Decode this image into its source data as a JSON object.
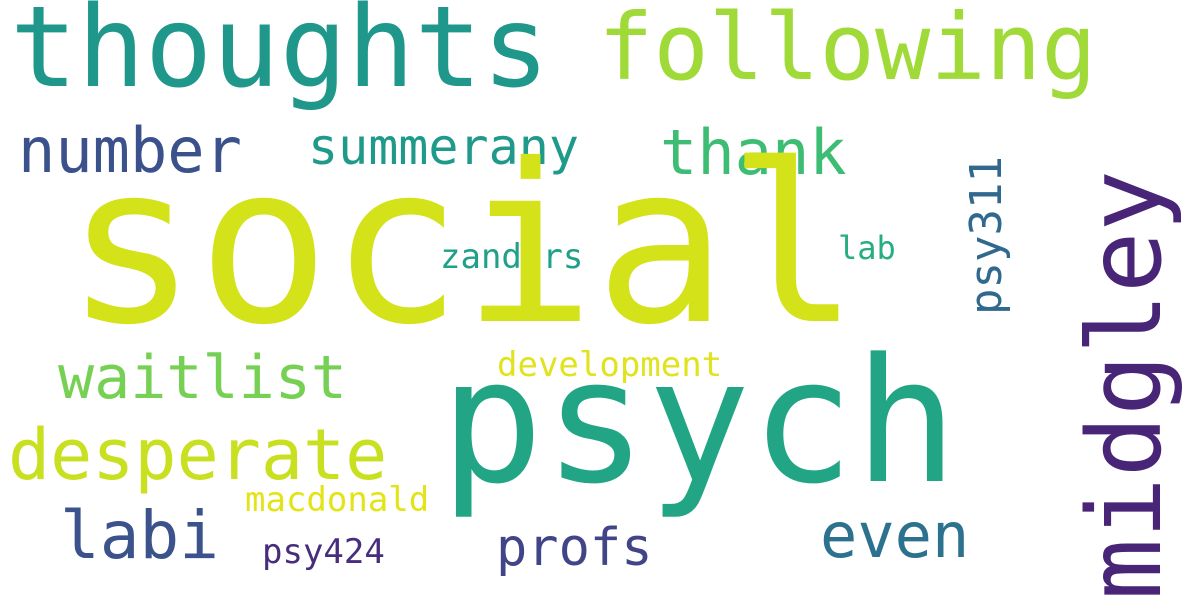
{
  "words": [
    {
      "key": "social",
      "text": "social",
      "color": "#d4e21a",
      "weight": 1.0
    },
    {
      "key": "psych",
      "text": "psych",
      "color": "#21a585",
      "weight": 0.9
    },
    {
      "key": "thoughts",
      "text": "thoughts",
      "color": "#1f988b",
      "weight": 0.55
    },
    {
      "key": "following",
      "text": "following",
      "color": "#a0da39",
      "weight": 0.5
    },
    {
      "key": "midgley",
      "text": "midgley",
      "color": "#482576",
      "weight": 0.5
    },
    {
      "key": "number",
      "text": "number",
      "color": "#3b518b",
      "weight": 0.33
    },
    {
      "key": "summerany",
      "text": "summerany",
      "color": "#1f9a8a",
      "weight": 0.2
    },
    {
      "key": "thank",
      "text": "thank",
      "color": "#3dbc74",
      "weight": 0.33
    },
    {
      "key": "psy311",
      "text": "psy311",
      "color": "#31688e",
      "weight": 0.24
    },
    {
      "key": "zanders",
      "text": "zanders",
      "color": "#1fa088",
      "weight": 0.15
    },
    {
      "key": "lab",
      "text": "lab",
      "color": "#26ad81",
      "weight": 0.14
    },
    {
      "key": "waitlist",
      "text": "waitlist",
      "color": "#75d054",
      "weight": 0.3
    },
    {
      "key": "development",
      "text": "development",
      "color": "#e0e31d",
      "weight": 0.14
    },
    {
      "key": "desperate",
      "text": "desperate",
      "color": "#c8e020",
      "weight": 0.33
    },
    {
      "key": "labi",
      "text": "labi",
      "color": "#3b528b",
      "weight": 0.33
    },
    {
      "key": "macdonald",
      "text": "macdonald",
      "color": "#e3e418",
      "weight": 0.15
    },
    {
      "key": "profs",
      "text": "profs",
      "color": "#414487",
      "weight": 0.24
    },
    {
      "key": "even",
      "text": "even",
      "color": "#2c728e",
      "weight": 0.3
    },
    {
      "key": "psy424",
      "text": "psy424",
      "color": "#472d7b",
      "weight": 0.15
    }
  ]
}
